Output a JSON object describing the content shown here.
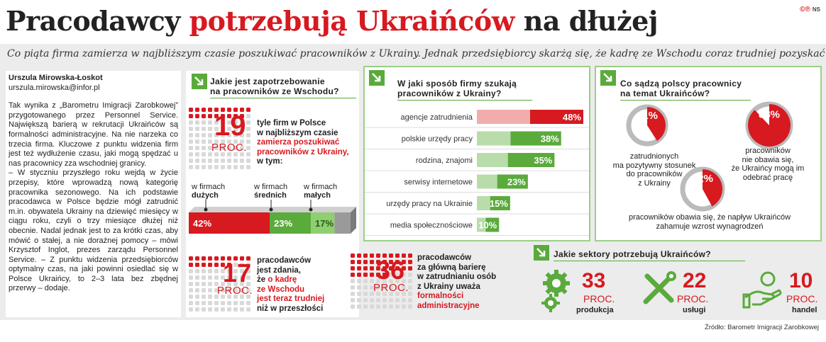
{
  "header": {
    "title_part1": "Pracodawcy ",
    "title_red": "potrzebują Ukraińców",
    "title_part2": " na dłużej",
    "logo": "©℗",
    "logo_ns": "NS",
    "subtitle": "Co piąta firma zamierza w najbliższym czasie poszukiwać pracowników z Ukrainy. Jednak przedsiębiorcy skarżą się, że kadrę ze Wschodu coraz trudniej pozyskać."
  },
  "article": {
    "author": "Urszula Mirowska-Łoskot",
    "email": "urszula.mirowska@infor.pl",
    "paragraph1": "Tak wynika z „Barometru Imigracji Zarobkowej” przygotowanego przez Personnel Service. Największą barierą w rekrutacji Ukraińców są formalności administracyjne. Na nie narzeka co trzecia firma. Kluczowe z punktu widzenia firm jest też wydłużenie czasu, jaki mogą spędzać u nas pracownicy zza wschodniej granicy.",
    "paragraph2": "– W styczniu przyszłego roku wejdą w życie przepisy, które wprowadzą nową kategorię pracownika sezonowego. Na ich podstawie pracodawca w Polsce będzie mógł zatrudnić m.in. obywatela Ukrainy na dziewięć miesięcy w ciągu roku, czyli o trzy miesiące dłużej niż obecnie. Nadal jednak jest to za krótki czas, aby mówić o stałej, a nie doraźnej pomocy – mówi Krzysztof Inglot, prezes zarządu Personnel Service. – Z punktu widzenia przedsiębiorców optymalny czas, na jaki powinni osiedlać się w Polsce Ukraińcy, to 2–3 lata bez zbędnej przerwy – dodaje."
  },
  "demand": {
    "title_line1": "Jakie jest zapotrzebowanie",
    "title_line2": "na pracowników ze Wschodu?",
    "value": "19",
    "unit": "PROC.",
    "desc_line1": "tyle firm w Polsce",
    "desc_line2": "w najbliższym czasie",
    "desc_red1": "zamierza poszukiwać",
    "desc_red2": "pracowników z Ukrainy,",
    "desc_line3": "w tym:",
    "cat_large_1": "w firmach",
    "cat_large_2": "dużych",
    "cat_medium_1": "w firmach",
    "cat_medium_2": "średnich",
    "cat_small_1": "w firmach",
    "cat_small_2": "małych",
    "large_label": "42%",
    "medium_label": "23%",
    "small_label": "17%"
  },
  "stat17": {
    "value": "17",
    "unit": "PROC.",
    "l1": "pracodawców",
    "l2": "jest zdania,",
    "l3a": "że ",
    "l3b": "o kadrę",
    "l4": "ze Wschodu",
    "l5": "jest teraz trudniej",
    "l6": "niż w przeszłości"
  },
  "stat36": {
    "value": "36",
    "unit": "PROC.",
    "l1": "pracodawców",
    "l2": "za główną barierę",
    "l3": "w zatrudnianiu osób",
    "l4": "z Ukrainy uważa",
    "l5": "formalności",
    "l6": "administracyjne"
  },
  "methods": {
    "title_line1": "W jaki sposób firmy szukają",
    "title_line2": "pracowników z Ukrainy?"
  },
  "opinions": {
    "title_line1": "Co sądzą polscy pracownicy",
    "title_line2": "na temat Ukraińców?",
    "v41": "41%",
    "t41_1": "zatrudnionych",
    "t41_2": "ma pozytywny stosunek",
    "t41_3": "do pracowników",
    "t41_4": "z Ukrainy",
    "v88": "88%",
    "t88_1": "pracowników",
    "t88_2": "nie obawia się,",
    "t88_3": "że Ukraińcy mogą im",
    "t88_4": "odebrać pracę",
    "v42": "42%",
    "t42_1": "pracowników obawia się, że napływ Ukraińców",
    "t42_2": "zahamuje wzrost wynagrodzeń"
  },
  "sectors": {
    "title": "Jakie sektory potrzebują Ukraińców?",
    "production_value": "33",
    "production_unit": "PROC.",
    "production_name": "produkcja",
    "services_value": "22",
    "services_unit": "PROC.",
    "services_name": "usługi",
    "trade_value": "10",
    "trade_unit": "PROC.",
    "trade_name": "handel"
  },
  "source": "Źródło: Barometr Imigracji Zarobkowej",
  "colors": {
    "red": "#d71920",
    "green": "#5aaa3c",
    "gray": "#9a9a9a",
    "light_gray": "#ececec"
  },
  "chart_data": [
    {
      "type": "bar",
      "title": "W jaki sposób firmy szukają pracowników z Ukrainy?",
      "categories": [
        "agencje zatrudnienia",
        "polskie urzędy pracy",
        "rodzina, znajomi",
        "serwisy internetowe",
        "urzędy pracy na Ukrainie",
        "media społecznościowe"
      ],
      "values": [
        48,
        38,
        35,
        23,
        15,
        10
      ],
      "labels": [
        "48%",
        "38%",
        "35%",
        "23%",
        "15%",
        "10%"
      ],
      "orientation": "horizontal",
      "ylim": [
        0,
        48
      ]
    },
    {
      "type": "bar",
      "title": "Jakie jest zapotrzebowanie na pracowników ze Wschodu?",
      "categories": [
        "w firmach dużych",
        "w firmach średnich",
        "w firmach małych"
      ],
      "values": [
        42,
        23,
        17
      ]
    },
    {
      "type": "pie",
      "title": "Co sądzą polscy pracownicy na temat Ukraińców?",
      "values": [
        41,
        88,
        42
      ]
    },
    {
      "type": "table",
      "title": "Jakie sektory potrzebują Ukraińców?",
      "categories": [
        "produkcja",
        "usługi",
        "handel"
      ],
      "values": [
        33,
        22,
        10
      ]
    }
  ]
}
